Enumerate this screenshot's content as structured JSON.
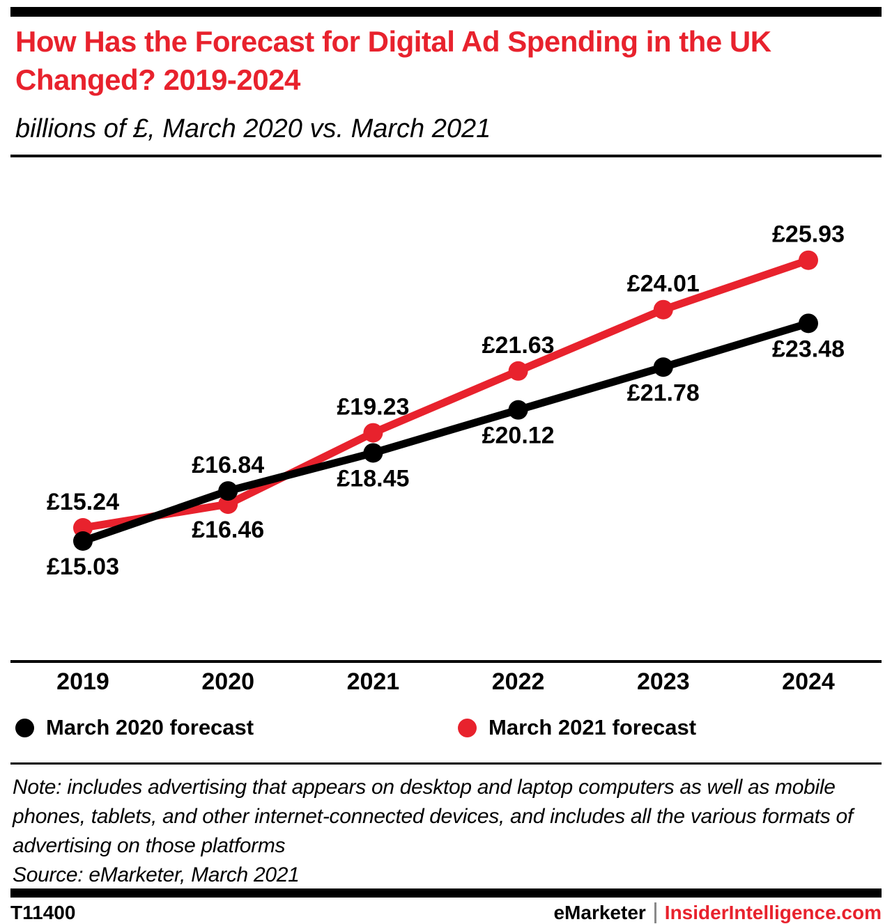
{
  "header": {
    "title": "How Has the Forecast for Digital Ad Spending in the UK Changed? 2019-2024",
    "subtitle": "billions of £, March 2020 vs. March 2021"
  },
  "chart_data": {
    "type": "line",
    "categories": [
      "2019",
      "2020",
      "2021",
      "2022",
      "2023",
      "2024"
    ],
    "series": [
      {
        "name": "March 2020 forecast",
        "color": "#000000",
        "values": [
          15.03,
          16.84,
          18.45,
          20.12,
          21.78,
          23.48
        ],
        "labels": [
          "£15.03",
          "£16.84",
          "£18.45",
          "£20.12",
          "£21.78",
          "£23.48"
        ]
      },
      {
        "name": "March 2021 forecast",
        "color": "#e8222d",
        "values": [
          15.24,
          16.46,
          19.23,
          21.63,
          24.01,
          25.93
        ],
        "labels": [
          "£15.24",
          "£16.46",
          "£19.23",
          "£21.63",
          "£24.01",
          "£25.93"
        ]
      }
    ],
    "title": "How Has the Forecast for Digital Ad Spending in the UK Changed? 2019-2024",
    "subtitle": "billions of £, March 2020 vs. March 2021",
    "xlabel": "",
    "ylabel": "billions of £",
    "ylim": [
      14.5,
      26.5
    ],
    "grid": false,
    "legend_position": "bottom",
    "data_label_rule": "higher value labeled above point, lower value labeled below point"
  },
  "legend": {
    "items": [
      {
        "label": "March 2020 forecast",
        "color": "#000000"
      },
      {
        "label": "March 2021 forecast",
        "color": "#e8222d"
      }
    ]
  },
  "note": {
    "note_text": "Note: includes advertising that appears on desktop and laptop computers as well as mobile phones, tablets, and other internet-connected devices, and includes all the various formats of advertising on those platforms",
    "source_text": "Source: eMarketer, March 2021"
  },
  "footer": {
    "id": "T11400",
    "brand_left": "eMarketer",
    "separator": "|",
    "brand_right": "InsiderIntelligence.com"
  },
  "colors": {
    "brand_red": "#e8222d",
    "black": "#000000",
    "separator_gray": "#8a8a8a"
  }
}
